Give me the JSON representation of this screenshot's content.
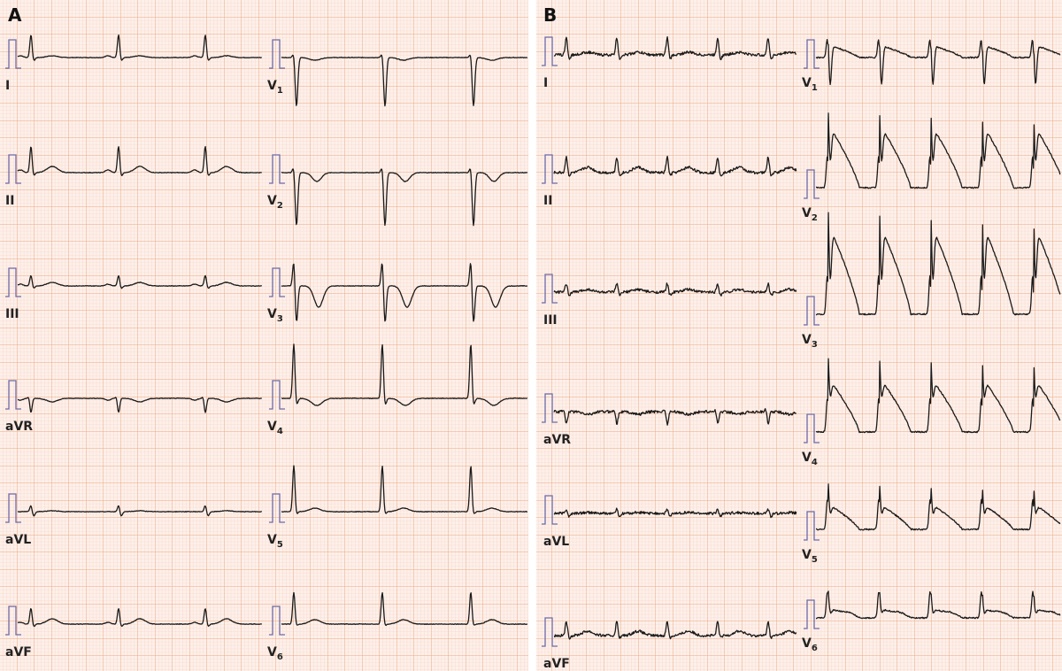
{
  "panels": [
    {
      "letter": "A",
      "left_leads": [
        "I",
        "II",
        "III",
        "aVR",
        "aVL",
        "aVF"
      ],
      "right_leads": [
        {
          "main": "V",
          "sub": "1"
        },
        {
          "main": "V",
          "sub": "2"
        },
        {
          "main": "V",
          "sub": "3"
        },
        {
          "main": "V",
          "sub": "4"
        },
        {
          "main": "V",
          "sub": "5"
        },
        {
          "main": "V",
          "sub": "6"
        }
      ]
    },
    {
      "letter": "B",
      "left_leads": [
        "I",
        "II",
        "III",
        "aVR",
        "aVL",
        "aVF"
      ],
      "right_leads": [
        {
          "main": "V",
          "sub": "1"
        },
        {
          "main": "V",
          "sub": "2"
        },
        {
          "main": "V",
          "sub": "3"
        },
        {
          "main": "V",
          "sub": "4"
        },
        {
          "main": "V",
          "sub": "5"
        },
        {
          "main": "V",
          "sub": "6"
        }
      ]
    }
  ],
  "colors": {
    "paper": "#fdf0ea",
    "grid_minor": "#f5cdbd",
    "grid_major": "#eaa983",
    "trace": "#1a1a1a",
    "calibration": "#6d6aa8"
  }
}
